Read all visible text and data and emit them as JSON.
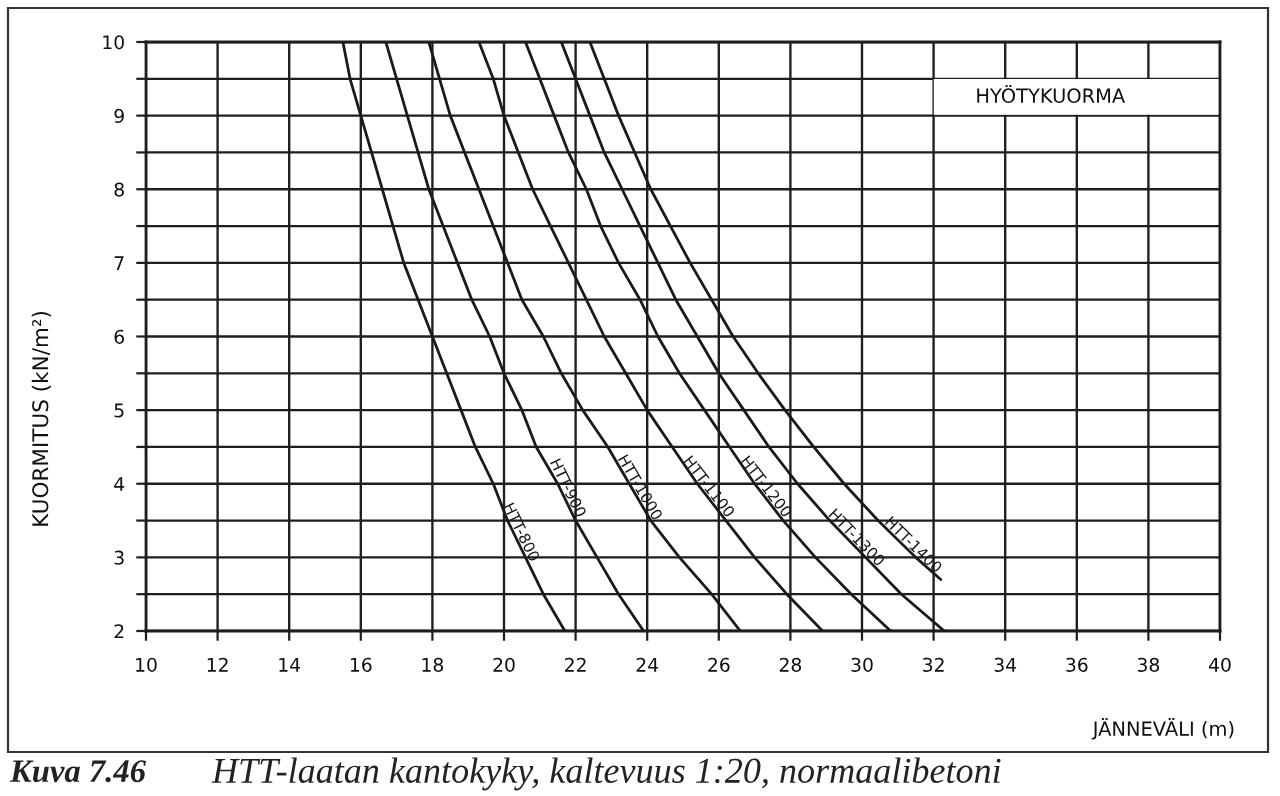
{
  "chart_data": {
    "type": "line",
    "xlabel": "JÄNNEVÄLI (m)",
    "ylabel": "KUORMITUS (kN/m²)",
    "annotations": [
      "HYÖTYKUORMA",
      "Kuva 7.46",
      "HTT-laatan kantokyky, kaltevuus 1:20, normaalibetoni"
    ],
    "xlim": [
      10,
      40
    ],
    "ylim": [
      2,
      10
    ],
    "xticks": [
      10,
      12,
      14,
      16,
      18,
      20,
      22,
      24,
      26,
      28,
      30,
      32,
      34,
      36,
      38,
      40
    ],
    "yticks": [
      2,
      {
        "value": 2.5,
        "label": null
      },
      3,
      {
        "value": 3.5,
        "label": null
      },
      4,
      {
        "value": 4.5,
        "label": null
      },
      5,
      {
        "value": 5.5,
        "label": null
      },
      6,
      {
        "value": 6.5,
        "label": null
      },
      7,
      {
        "value": 7.5,
        "label": null
      },
      8,
      {
        "value": 8.5,
        "label": null
      },
      9,
      {
        "value": 9.5,
        "label": null
      },
      10
    ],
    "grid": true,
    "series": [
      {
        "name": "HTT-800",
        "color": "#1a1a1a",
        "x": [
          15.5,
          15.7,
          16.0,
          16.3,
          16.6,
          16.9,
          17.2,
          17.6,
          18.0,
          18.4,
          18.8,
          19.2,
          19.7,
          20.1,
          20.6,
          21.1,
          21.7
        ],
        "values": [
          10,
          9.5,
          9,
          8.5,
          8,
          7.5,
          7,
          6.5,
          6,
          5.5,
          5,
          4.5,
          4,
          3.5,
          3,
          2.5,
          2
        ]
      },
      {
        "name": "HTT-900",
        "color": "#1a1a1a",
        "x": [
          16.7,
          17.0,
          17.3,
          17.6,
          17.9,
          18.3,
          18.7,
          19.1,
          19.6,
          20.0,
          20.5,
          20.9,
          21.5,
          22.0,
          22.6,
          23.2,
          23.9
        ],
        "values": [
          10,
          9.5,
          9,
          8.5,
          8,
          7.5,
          7,
          6.5,
          6,
          5.5,
          5,
          4.5,
          4,
          3.5,
          3,
          2.5,
          2
        ]
      },
      {
        "name": "HTT-1000",
        "color": "#1a1a1a",
        "x": [
          17.9,
          18.2,
          18.5,
          18.9,
          19.3,
          19.7,
          20.1,
          20.5,
          21.1,
          21.6,
          22.2,
          22.9,
          23.5,
          24.1,
          24.9,
          25.8,
          26.6
        ],
        "values": [
          10,
          9.5,
          9,
          8.5,
          8,
          7.5,
          7,
          6.5,
          6,
          5.5,
          5,
          4.5,
          4,
          3.5,
          3,
          2.5,
          2
        ]
      },
      {
        "name": "HTT-1100",
        "color": "#1a1a1a",
        "x": [
          19.3,
          19.7,
          20.0,
          20.4,
          20.8,
          21.3,
          21.8,
          22.3,
          22.8,
          23.4,
          24.0,
          24.7,
          25.4,
          26.2,
          27.0,
          27.9,
          28.9
        ],
        "values": [
          10,
          9.5,
          9,
          8.5,
          8,
          7.5,
          7,
          6.5,
          6,
          5.5,
          5,
          4.5,
          4,
          3.5,
          3,
          2.5,
          2
        ]
      },
      {
        "name": "HTT-1200",
        "color": "#1a1a1a",
        "x": [
          20.6,
          21.0,
          21.4,
          21.8,
          22.3,
          22.7,
          23.2,
          23.8,
          24.3,
          24.9,
          25.6,
          26.3,
          27.0,
          27.8,
          28.7,
          29.7,
          30.8
        ],
        "values": [
          10,
          9.5,
          9,
          8.5,
          8,
          7.5,
          7,
          6.5,
          6,
          5.5,
          5,
          4.5,
          4,
          3.5,
          3,
          2.5,
          2
        ]
      },
      {
        "name": "HTT-1300",
        "color": "#1a1a1a",
        "x": [
          21.6,
          22.0,
          22.4,
          22.8,
          23.3,
          23.8,
          24.3,
          24.8,
          25.4,
          26.0,
          26.7,
          27.4,
          28.2,
          29.1,
          30.1,
          31.1,
          32.3
        ],
        "values": [
          10,
          9.5,
          9,
          8.5,
          8,
          7.5,
          7,
          6.5,
          6,
          5.5,
          5,
          4.5,
          4,
          3.5,
          3,
          2.5,
          2
        ]
      },
      {
        "name": "HTT-1400",
        "color": "#1a1a1a",
        "x": [
          22.4,
          22.8,
          23.2,
          23.65,
          24.1,
          24.65,
          25.2,
          25.8,
          26.4,
          27.1,
          27.85,
          28.65,
          29.5,
          30.45,
          31.5,
          32.2
        ],
        "values": [
          10,
          9.5,
          9,
          8.5,
          8,
          7.5,
          7,
          6.5,
          6,
          5.5,
          5,
          4.5,
          4,
          3.5,
          3,
          2.7
        ]
      }
    ]
  }
}
